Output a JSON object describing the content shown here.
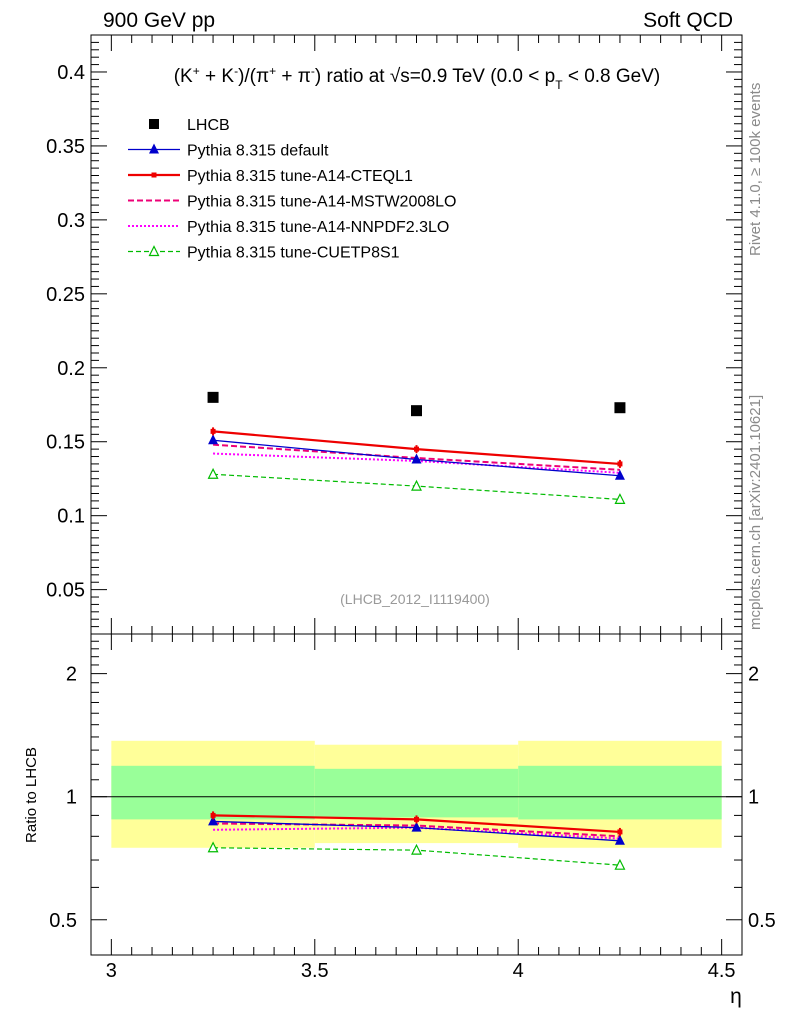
{
  "header": {
    "left": "900 GeV pp",
    "right": "Soft QCD"
  },
  "side_labels": {
    "rivet": "Rivet 4.1.0, ≥ 100k events",
    "mcplots": "mcplots.cern.ch [arXiv:2401.10621]"
  },
  "colors": {
    "data": "#000000",
    "default": "#0000cc",
    "cteql1": "#ee0000",
    "mstw": "#ee0077",
    "nnpdf": "#ff00ff",
    "cuetp8s1": "#00bb00",
    "band_outer": "#ffff99",
    "band_inner": "#99ff99"
  },
  "chart_data": {
    "type": "line",
    "title": "(K⁺ + K⁻)/(π⁺ + π⁻) ratio at √s=0.9 TeV (0.0 < p_T < 0.8 GeV)",
    "title_parts": {
      "pre": "(K",
      "sup1": "+",
      "mid1": " + K",
      "sup2": "-",
      "mid2": ")/(π",
      "sup3": "+",
      "mid3": " + π",
      "sup4": "-",
      "mid4": ") ratio at √s=0.9 TeV (0.0 < p",
      "sub": "T",
      "post": " < 0.8 GeV)"
    },
    "xlabel": "η",
    "ylabel_ratio": "Ratio to LHCB",
    "analysis_label": "(LHCB_2012_I1119400)",
    "xlim": [
      2.95,
      4.55
    ],
    "ylim": [
      0.02,
      0.425
    ],
    "ratio_ylim": [
      0.41,
      2.5
    ],
    "x_ticks": [
      3,
      3.5,
      4,
      4.5
    ],
    "x_tick_labels": [
      "3",
      "3.5",
      "4",
      "4.5"
    ],
    "y_ticks": [
      0.05,
      0.1,
      0.15,
      0.2,
      0.25,
      0.3,
      0.35,
      0.4
    ],
    "y_tick_labels": [
      "0.05",
      "0.1",
      "0.15",
      "0.2",
      "0.25",
      "0.3",
      "0.35",
      "0.4"
    ],
    "ratio_y_ticks": [
      0.5,
      1,
      2
    ],
    "ratio_y_tick_labels": [
      "0.5",
      "1",
      "2"
    ],
    "bin_edges": [
      3.0,
      3.5,
      4.0,
      4.5
    ],
    "x": [
      3.25,
      3.75,
      4.25
    ],
    "data": {
      "name": "LHCB",
      "values": [
        0.18,
        0.171,
        0.173
      ]
    },
    "band_outer": [
      [
        0.75,
        1.37
      ],
      [
        0.77,
        1.34
      ],
      [
        0.75,
        1.37
      ]
    ],
    "band_inner": [
      [
        0.88,
        1.19
      ],
      [
        0.89,
        1.17
      ],
      [
        0.88,
        1.19
      ]
    ],
    "series": [
      {
        "name": "Pythia 8.315 default",
        "key": "default",
        "values": [
          0.151,
          0.138,
          0.127
        ],
        "ratio": [
          0.87,
          0.84,
          0.78
        ],
        "marker": "triangle-filled",
        "dash": "solid",
        "width": 1.3
      },
      {
        "name": "Pythia 8.315 tune-A14-CTEQL1",
        "key": "cteql1",
        "values": [
          0.157,
          0.145,
          0.135
        ],
        "ratio": [
          0.9,
          0.88,
          0.82
        ],
        "marker": "square-small",
        "dash": "solid",
        "width": 2.2
      },
      {
        "name": "Pythia 8.315 tune-A14-MSTW2008LO",
        "key": "mstw",
        "values": [
          0.148,
          0.139,
          0.131
        ],
        "ratio": [
          0.86,
          0.85,
          0.8
        ],
        "marker": "none",
        "dash": "6,3",
        "width": 2
      },
      {
        "name": "Pythia 8.315 tune-A14-NNPDF2.3LO",
        "key": "nnpdf",
        "values": [
          0.142,
          0.137,
          0.129
        ],
        "ratio": [
          0.83,
          0.84,
          0.79
        ],
        "marker": "none",
        "dash": "2,2",
        "width": 2
      },
      {
        "name": "Pythia 8.315 tune-CUETP8S1",
        "key": "cuetp8s1",
        "values": [
          0.128,
          0.12,
          0.111
        ],
        "ratio": [
          0.75,
          0.74,
          0.68
        ],
        "marker": "triangle-open",
        "dash": "5,3",
        "width": 1.2
      }
    ]
  }
}
